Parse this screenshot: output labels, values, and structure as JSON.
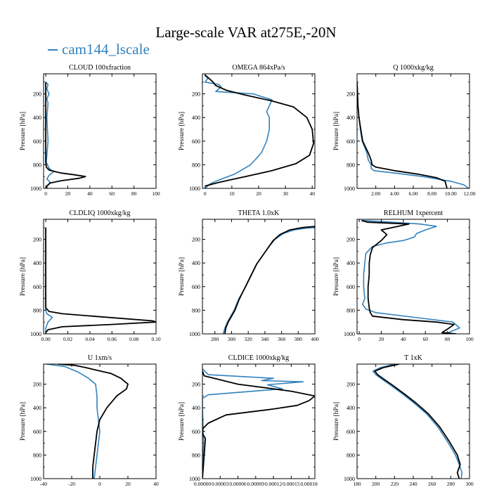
{
  "figure": {
    "title": "Large-scale VAR at275E,-20N",
    "legend": [
      {
        "name": "cam144_lscale",
        "color": "#3182bd"
      }
    ]
  },
  "chart_data": [
    {
      "type": "line",
      "title": "CLOUD  100xfraction",
      "ylabel": "Pressure [hPa]",
      "xlim": [
        -2,
        100
      ],
      "ylim": [
        1000,
        30
      ],
      "y_inverted": true,
      "xticks": [
        0,
        20,
        40,
        60,
        80,
        100
      ],
      "xtick_labels": [
        "0",
        "20",
        "40",
        "60",
        "80",
        "100"
      ],
      "yticks": [
        200,
        400,
        600,
        800,
        1000
      ],
      "ytick_labels": [
        "200",
        "400",
        "600",
        "800",
        "1000"
      ],
      "series": [
        {
          "color": "#3182bd",
          "x": [
            0,
            2,
            1,
            3,
            1,
            2,
            1,
            2,
            0.5,
            3,
            7,
            3,
            1,
            4,
            2,
            1,
            2
          ],
          "y": [
            100,
            120,
            160,
            200,
            240,
            280,
            400,
            600,
            780,
            830,
            860,
            890,
            920,
            950,
            970,
            990,
            1000
          ]
        },
        {
          "color": "#000000",
          "x": [
            0,
            0,
            0,
            0,
            0,
            0.5,
            3,
            14,
            26,
            36,
            30,
            14,
            4,
            1,
            0
          ],
          "y": [
            100,
            200,
            400,
            600,
            780,
            820,
            845,
            870,
            885,
            900,
            915,
            935,
            955,
            980,
            1000
          ]
        }
      ]
    },
    {
      "type": "line",
      "title": "OMEGA  864xPa/s",
      "ylabel": "Pressure [hPa]",
      "xlim": [
        -1,
        41
      ],
      "ylim": [
        1000,
        30
      ],
      "y_inverted": true,
      "xticks": [
        0,
        10,
        20,
        30,
        40
      ],
      "xtick_labels": [
        "0",
        "10",
        "20",
        "30",
        "40"
      ],
      "yticks": [
        200,
        400,
        600,
        800,
        1000
      ],
      "ytick_labels": [
        "200",
        "400",
        "600",
        "800",
        "1000"
      ],
      "series": [
        {
          "color": "#3182bd",
          "x": [
            0,
            1,
            0,
            5,
            6,
            5,
            4,
            18,
            25,
            24,
            23,
            24,
            24,
            23,
            21,
            17,
            11,
            5,
            2,
            0
          ],
          "y": [
            40,
            70,
            100,
            120,
            140,
            160,
            180,
            200,
            250,
            300,
            350,
            400,
            500,
            600,
            700,
            800,
            880,
            930,
            960,
            1000
          ]
        },
        {
          "color": "#000000",
          "x": [
            0,
            1,
            2,
            3,
            4,
            8,
            15,
            25,
            33,
            38,
            40,
            40.5,
            39,
            34,
            25,
            15,
            5,
            0
          ],
          "y": [
            40,
            60,
            80,
            100,
            130,
            170,
            210,
            260,
            310,
            400,
            500,
            620,
            720,
            790,
            850,
            900,
            950,
            980
          ]
        }
      ]
    },
    {
      "type": "line",
      "title": "Q  1000xkg/kg",
      "ylabel": "Pressure [hPa]",
      "xlim": [
        0,
        12
      ],
      "ylim": [
        1000,
        30
      ],
      "y_inverted": true,
      "xticks": [
        2,
        4,
        6,
        8,
        10,
        12
      ],
      "xtick_labels": [
        "2.00",
        "4.00",
        "6.00",
        "8.00",
        "10.00",
        "12.00"
      ],
      "yticks": [
        200,
        400,
        600,
        800,
        1000
      ],
      "ytick_labels": [
        "200",
        "400",
        "600",
        "800",
        "1000"
      ],
      "series": [
        {
          "color": "#3182bd",
          "x": [
            0,
            0.05,
            0.1,
            0.2,
            0.35,
            0.55,
            0.8,
            1.05,
            1.2,
            1.5,
            1.5,
            1.8,
            4,
            7,
            10,
            11.4,
            11.9
          ],
          "y": [
            100,
            200,
            300,
            400,
            500,
            600,
            650,
            700,
            760,
            800,
            830,
            850,
            870,
            900,
            940,
            970,
            1000
          ]
        },
        {
          "color": "#000000",
          "x": [
            0,
            0.05,
            0.1,
            0.2,
            0.4,
            0.6,
            0.9,
            1.2,
            1.5,
            1.6,
            2,
            4,
            6.5,
            8.5,
            9.4,
            9.6
          ],
          "y": [
            100,
            200,
            300,
            400,
            500,
            600,
            650,
            700,
            760,
            800,
            820,
            850,
            880,
            910,
            940,
            1000
          ]
        }
      ]
    },
    {
      "type": "line",
      "title": "CLDLIQ  1000xkg/kg",
      "ylabel": "Pressure [hPa]",
      "xlim": [
        -0.002,
        0.1
      ],
      "ylim": [
        1000,
        30
      ],
      "y_inverted": true,
      "xticks": [
        0,
        0.02,
        0.04,
        0.06,
        0.08,
        0.1
      ],
      "xtick_labels": [
        "0.00",
        "0.02",
        "0.04",
        "0.06",
        "0.08",
        "0.10"
      ],
      "yticks": [
        200,
        400,
        600,
        800,
        1000
      ],
      "ytick_labels": [
        "200",
        "400",
        "600",
        "800",
        "1000"
      ],
      "series": [
        {
          "color": "#3182bd",
          "x": [
            0,
            0,
            0.001,
            0.006,
            0.002,
            0,
            0
          ],
          "y": [
            100,
            800,
            830,
            860,
            900,
            950,
            1000
          ]
        },
        {
          "color": "#000000",
          "x": [
            0,
            0,
            0.003,
            0.015,
            0.07,
            0.097,
            0.1,
            0.06,
            0.015,
            0.002,
            0
          ],
          "y": [
            100,
            780,
            810,
            830,
            870,
            890,
            900,
            920,
            940,
            965,
            990
          ]
        }
      ]
    },
    {
      "type": "line",
      "title": "THETA  1.0xK",
      "ylabel": "Pressure [hPa]",
      "xlim": [
        265,
        400
      ],
      "ylim": [
        1000,
        30
      ],
      "y_inverted": true,
      "xticks": [
        280,
        300,
        320,
        340,
        360,
        380,
        400
      ],
      "xtick_labels": [
        "280",
        "300",
        "320",
        "340",
        "360",
        "380",
        "400"
      ],
      "yticks": [
        200,
        400,
        600,
        800,
        1000
      ],
      "ytick_labels": [
        "200",
        "400",
        "600",
        "800",
        "1000"
      ],
      "series": [
        {
          "color": "#3182bd",
          "x": [
            400,
            390,
            375,
            362,
            352,
            345,
            338,
            331,
            324,
            317,
            309,
            303,
            299,
            295,
            292,
            290
          ],
          "y": [
            100,
            105,
            120,
            150,
            200,
            260,
            330,
            400,
            500,
            600,
            700,
            800,
            850,
            900,
            950,
            1000
          ]
        },
        {
          "color": "#000000",
          "x": [
            400,
            385,
            370,
            358,
            350,
            344,
            337,
            330,
            323,
            316,
            309,
            304,
            300,
            296,
            293,
            292
          ],
          "y": [
            90,
            100,
            120,
            160,
            210,
            270,
            340,
            410,
            510,
            610,
            710,
            800,
            850,
            900,
            950,
            1000
          ]
        }
      ]
    },
    {
      "type": "line",
      "title": "RELHUM  1xpercent",
      "ylabel": "Pressure [hPa]",
      "xlim": [
        -2,
        100
      ],
      "ylim": [
        1000,
        30
      ],
      "y_inverted": true,
      "xticks": [
        0,
        20,
        40,
        60,
        80,
        100
      ],
      "xtick_labels": [
        "0",
        "20",
        "40",
        "60",
        "80",
        "100"
      ],
      "yticks": [
        200,
        400,
        600,
        800,
        1000
      ],
      "ytick_labels": [
        "200",
        "400",
        "600",
        "800",
        "1000"
      ],
      "series": [
        {
          "color": "#3182bd",
          "x": [
            3,
            30,
            55,
            70,
            60,
            52,
            50,
            40,
            25,
            12,
            6,
            5,
            4,
            4,
            5,
            3,
            6,
            15,
            50,
            85,
            91,
            78
          ],
          "y": [
            40,
            55,
            70,
            90,
            120,
            150,
            180,
            210,
            230,
            260,
            320,
            400,
            500,
            600,
            700,
            750,
            790,
            820,
            860,
            900,
            950,
            1000
          ]
        },
        {
          "color": "#000000",
          "x": [
            2,
            8,
            45,
            30,
            20,
            25,
            20,
            12,
            10,
            9,
            9,
            8,
            8,
            9,
            10,
            12,
            40,
            70,
            86,
            80,
            75,
            88
          ],
          "y": [
            40,
            55,
            70,
            100,
            120,
            160,
            210,
            270,
            330,
            400,
            500,
            600,
            700,
            780,
            820,
            850,
            880,
            900,
            920,
            960,
            990,
            1000
          ]
        }
      ]
    },
    {
      "type": "line",
      "title": "U  1xm/s",
      "ylabel": "Pressure [hPa]",
      "xlim": [
        -40,
        40
      ],
      "ylim": [
        1000,
        30
      ],
      "y_inverted": true,
      "xticks": [
        -40,
        -20,
        0,
        20,
        40
      ],
      "xtick_labels": [
        "-40",
        "-20",
        "0",
        "20",
        "40"
      ],
      "yticks": [
        200,
        400,
        600,
        800,
        1000
      ],
      "ytick_labels": [
        "200",
        "400",
        "600",
        "800",
        "1000"
      ],
      "series": [
        {
          "color": "#3182bd",
          "x": [
            -38,
            -25,
            -15,
            -8,
            -3,
            -2,
            -2,
            -1,
            0,
            -1,
            -2,
            -3,
            -4
          ],
          "y": [
            30,
            50,
            100,
            150,
            200,
            300,
            400,
            500,
            600,
            700,
            800,
            900,
            1000
          ]
        },
        {
          "color": "#000000",
          "x": [
            -30,
            -18,
            -10,
            -3,
            8,
            15,
            20,
            19,
            12,
            5,
            0,
            -2,
            -3,
            -4,
            -5,
            -5
          ],
          "y": [
            30,
            40,
            60,
            80,
            110,
            150,
            200,
            240,
            300,
            400,
            500,
            600,
            700,
            800,
            900,
            1000
          ]
        }
      ]
    },
    {
      "type": "line",
      "title": "CLDICE  1000xkg/kg",
      "ylabel": "Pressure [hPa]",
      "xlim": [
        0,
        0.00019
      ],
      "ylim": [
        1000,
        30
      ],
      "y_inverted": true,
      "xticks": [
        0,
        3e-05,
        6e-05,
        9e-05,
        0.00012,
        0.00015,
        0.00018
      ],
      "xtick_labels": [
        "0.00000",
        "0.00003",
        "0.00006",
        "0.00009",
        "0.00012",
        "0.00015",
        "0.00018"
      ],
      "yticks": [
        200,
        400,
        600,
        800,
        1000
      ],
      "ytick_labels": [
        "200",
        "400",
        "600",
        "800",
        "1000"
      ],
      "series": [
        {
          "color": "#3182bd",
          "x": [
            0,
            1e-05,
            0.00012,
            0.0001,
            0.00017,
            0.00011,
            0.000135,
            6e-05,
            1e-05,
            0,
            0,
            2e-06,
            0
          ],
          "y": [
            70,
            120,
            150,
            170,
            180,
            205,
            240,
            270,
            290,
            320,
            400,
            700,
            1000
          ]
        },
        {
          "color": "#000000",
          "x": [
            0,
            3e-06,
            6e-05,
            0.00015,
            0.00019,
            0.00018,
            0.00016,
            0.00012,
            4e-05,
            1e-05,
            0,
            0,
            5e-06,
            0
          ],
          "y": [
            90,
            130,
            200,
            260,
            300,
            340,
            380,
            410,
            460,
            530,
            580,
            620,
            660,
            1000
          ]
        }
      ]
    },
    {
      "type": "line",
      "title": "T  1xK",
      "ylabel": "Pressure [hPa]",
      "xlim": [
        180,
        300
      ],
      "ylim": [
        1000,
        30
      ],
      "y_inverted": true,
      "xticks": [
        180,
        200,
        220,
        240,
        260,
        280,
        300
      ],
      "xtick_labels": [
        "180",
        "200",
        "220",
        "240",
        "260",
        "280",
        "300"
      ],
      "yticks": [
        200,
        400,
        600,
        800,
        1000
      ],
      "ytick_labels": [
        "200",
        "400",
        "600",
        "800",
        "1000"
      ],
      "series": [
        {
          "color": "#3182bd",
          "x": [
            220,
            205,
            197,
            200,
            207,
            216,
            228,
            241,
            254,
            266,
            276,
            285,
            289,
            292,
            291
          ],
          "y": [
            30,
            60,
            90,
            120,
            160,
            210,
            280,
            360,
            450,
            560,
            680,
            800,
            880,
            950,
            1000
          ]
        },
        {
          "color": "#000000",
          "x": [
            225,
            208,
            199,
            202,
            209,
            218,
            230,
            243,
            256,
            268,
            278,
            287,
            290,
            287,
            289
          ],
          "y": [
            30,
            60,
            90,
            120,
            160,
            210,
            280,
            360,
            450,
            560,
            680,
            800,
            880,
            950,
            1000
          ]
        }
      ]
    }
  ]
}
